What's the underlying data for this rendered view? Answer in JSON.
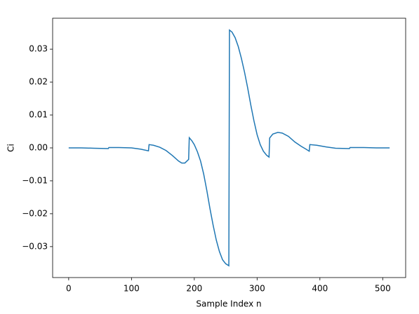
{
  "chart_data": {
    "type": "line",
    "xlabel": "Sample Index n",
    "ylabel": "Ci",
    "x": [
      0,
      20,
      40,
      63,
      64,
      80,
      100,
      115,
      127,
      128,
      135,
      145,
      155,
      165,
      175,
      180,
      185,
      191,
      192,
      196,
      200,
      205,
      210,
      215,
      220,
      225,
      230,
      235,
      240,
      245,
      250,
      255,
      256,
      260,
      265,
      270,
      275,
      280,
      285,
      290,
      295,
      300,
      305,
      310,
      315,
      319,
      320,
      325,
      333,
      340,
      350,
      360,
      370,
      378,
      383,
      384,
      395,
      410,
      425,
      447,
      448,
      470,
      490,
      511
    ],
    "series": [
      {
        "color": "#1f77b4",
        "values": [
          0.0,
          0.0,
          -0.0001,
          -0.0002,
          0.0001,
          0.0001,
          0.0,
          -0.0004,
          -0.0009,
          0.001,
          0.0008,
          0.0002,
          -0.0008,
          -0.0023,
          -0.004,
          -0.0046,
          -0.0046,
          -0.0035,
          0.0031,
          0.0022,
          0.001,
          -0.0012,
          -0.004,
          -0.008,
          -0.013,
          -0.0185,
          -0.0235,
          -0.028,
          -0.0315,
          -0.034,
          -0.0352,
          -0.0358,
          0.0358,
          0.0352,
          0.0335,
          0.0308,
          0.0272,
          0.023,
          0.0182,
          0.013,
          0.0082,
          0.004,
          0.001,
          -0.001,
          -0.0022,
          -0.0028,
          0.003,
          0.0042,
          0.0047,
          0.0045,
          0.0035,
          0.0018,
          0.0005,
          -0.0004,
          -0.001,
          0.001,
          0.0008,
          0.0003,
          -0.0001,
          -0.0002,
          0.0001,
          0.0001,
          0.0,
          0.0
        ]
      }
    ],
    "xlim": [
      -25.55,
      536.55
    ],
    "ylim": [
      -0.0394,
      0.0394
    ],
    "xticks": [
      0,
      100,
      200,
      300,
      400,
      500
    ],
    "yticks": [
      {
        "value": -0.03,
        "label": "−0.03"
      },
      {
        "value": -0.02,
        "label": "−0.02"
      },
      {
        "value": -0.01,
        "label": "−0.01"
      },
      {
        "value": 0,
        "label": "0.00"
      },
      0.01,
      0.02,
      0.03
    ]
  }
}
